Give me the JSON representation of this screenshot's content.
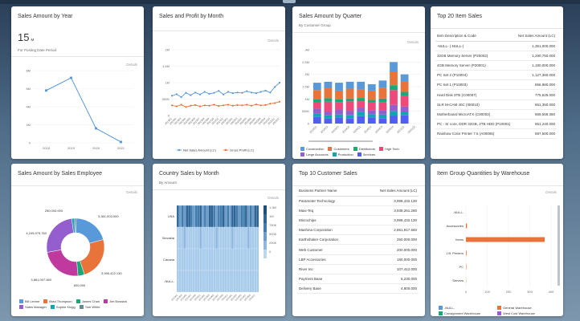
{
  "colors": {
    "accent": "#5899da",
    "orange": "#e8743b",
    "green": "#19a979",
    "pink": "#ed4a7b",
    "purple": "#945ecf",
    "teal": "#13a4b4",
    "darkblue": "#525df4",
    "grey": "#bf399e",
    "barblue": "#427cac"
  },
  "common": {
    "details": "Details"
  },
  "card1": {
    "title": "Sales Amount by Year",
    "kpi_value": "15",
    "kpi_unit": "M",
    "subtitle": "For Posting Date Period",
    "yticks": [
      "8M",
      "6M",
      "4M",
      "2M",
      "0"
    ],
    "chart_data": {
      "type": "line",
      "categories": [
        "2018",
        "2019",
        "2020",
        "2021"
      ],
      "values": [
        5.8,
        7.2,
        1.6,
        0.1
      ],
      "ylim": [
        0,
        8
      ]
    }
  },
  "card2": {
    "title": "Sales and Profit by Month",
    "yticks": [
      "2M",
      "1.5M",
      "1M",
      "500K",
      "0"
    ],
    "xticks": [
      "201901",
      "201902",
      "201903",
      "201904",
      "201905",
      "201906",
      "201907",
      "201908",
      "201909",
      "201910",
      "201911",
      "201912",
      "202001",
      "202002",
      "202003",
      "202004",
      "202005",
      "202006",
      "202007",
      "202008",
      "202009",
      "202010",
      "202011",
      "202012"
    ],
    "chart_data": {
      "type": "line",
      "ylim": [
        0,
        2000000
      ],
      "series": [
        {
          "name": "Net Sales Amount (LC)",
          "values": [
            600000,
            650000,
            560000,
            690000,
            620000,
            700000,
            640000,
            720000,
            660000,
            690000,
            750000,
            640000,
            720000,
            680000,
            700000,
            690000,
            740000,
            700000,
            680000,
            720000,
            760000,
            700000,
            870000,
            1000000
          ]
        },
        {
          "name": "Gross Profit (LC)",
          "values": [
            310000,
            280000,
            330000,
            260000,
            300000,
            320000,
            280000,
            310000,
            300000,
            330000,
            290000,
            310000,
            330000,
            300000,
            320000,
            310000,
            330000,
            300000,
            340000,
            310000,
            320000,
            360000,
            380000,
            420000
          ]
        }
      ]
    }
  },
  "card3": {
    "title": "Sales Amount by Quarter",
    "subtitle": "By Customer Group",
    "yticks": [
      "3M",
      "2.5M",
      "2M",
      "1.5M",
      "1M",
      "500K",
      "0"
    ],
    "chart_data": {
      "type": "bar",
      "categories": [
        "2019Q1",
        "2019Q2",
        "2019Q3",
        "2019Q4",
        "2020Q1",
        "2020Q2",
        "2020Q3",
        "2020Q4",
        "2021Q1",
        "2021Q2"
      ],
      "ylim": [
        0,
        3000000
      ],
      "series": [
        {
          "name": "Construction",
          "values": [
            300000,
            250000,
            320000,
            280000,
            300000,
            260000,
            310000,
            380000,
            290000,
            0
          ]
        },
        {
          "name": "Customers",
          "values": [
            380000,
            420000,
            350000,
            400000,
            360000,
            380000,
            420000,
            560000,
            420000,
            0
          ]
        },
        {
          "name": "Distributors",
          "values": [
            100000,
            140000,
            120000,
            120000,
            130000,
            110000,
            150000,
            200000,
            150000,
            0
          ]
        },
        {
          "name": "High Tech",
          "values": [
            280000,
            400000,
            300000,
            380000,
            260000,
            300000,
            320000,
            600000,
            450000,
            0
          ]
        },
        {
          "name": "Large Accounts",
          "values": [
            180000,
            160000,
            200000,
            170000,
            190000,
            170000,
            180000,
            250000,
            200000,
            0
          ]
        },
        {
          "name": "Production",
          "values": [
            150000,
            130000,
            120000,
            150000,
            160000,
            130000,
            170000,
            200000,
            160000,
            0
          ]
        },
        {
          "name": "Services",
          "values": [
            270000,
            200000,
            250000,
            200000,
            300000,
            250000,
            200000,
            310000,
            330000,
            0
          ]
        }
      ]
    }
  },
  "card4": {
    "title": "Top 20 Item Sales",
    "col1": "Item Description & Code",
    "col2": "Net Sales Amount (LC)",
    "rows": [
      {
        "name": "-NULL- (-NULL-)",
        "value": "1,351,000.000"
      },
      {
        "name": "32GB Memory Server (P20002)",
        "value": "1,290,750.000"
      },
      {
        "name": "4GB Memory Server (P20001)",
        "value": "1,180,000.000"
      },
      {
        "name": "PC Set 2 (P10004)",
        "value": "1,127,360.000"
      },
      {
        "name": "PC Set 1 (P10003)",
        "value": "856,980.000"
      },
      {
        "name": "Hard Disk 3TB (C00007)",
        "value": "775,625.000"
      },
      {
        "name": "SLR M-CAM 40C (I00010)",
        "value": "661,350.000"
      },
      {
        "name": "Motherboard MicroATX (C00002)",
        "value": "659,559.350"
      },
      {
        "name": "PC - Sr core, DDR 32GB, 2TB HDD (P10001)",
        "value": "651,240.000"
      },
      {
        "name": "Rainbow Color Printer 7.5 (A00005)",
        "value": "597,500.000"
      }
    ]
  },
  "card5": {
    "title": "Sales Amount by Sales Employee",
    "labels": [
      "250,000.000",
      "3,361,003.000",
      "4,245,975.760",
      "3,996,422.130",
      "3,861,007.560",
      "600,000"
    ],
    "chart_data": {
      "type": "pie",
      "categories": [
        "Bill Levine",
        "Brad Thompson",
        "James Chan",
        "Jim Boswick",
        "Sales Manager",
        "Sophie Klogg",
        "Tom White"
      ],
      "values": [
        3361003,
        3996422.13,
        600000,
        3861007.56,
        4245975.76,
        250000,
        150000
      ]
    },
    "legend": [
      "Bill Levine",
      "Brad Thompson",
      "James Chan",
      "Jim Boswick",
      "Sales Manager",
      "Sophie Klogg",
      "Tom White"
    ]
  },
  "card6": {
    "title": "Country Sales by Month",
    "subtitle": "By Amount",
    "rows": [
      "USA",
      "Slovakia",
      "Canada",
      "-NULL-"
    ],
    "scale": [
      "1.3M",
      "1M",
      "750K",
      "500K",
      "250K",
      "0"
    ]
  },
  "card7": {
    "title": "Top 10 Customer Sales",
    "col1": "Business Partner Name",
    "col2": "Net Sales Amount (LC)",
    "rows": [
      {
        "name": "Parameter Technology",
        "value": "3,998,432.130"
      },
      {
        "name": "Maxi-Teq",
        "value": "3,938,261.280"
      },
      {
        "name": "Microchips",
        "value": "3,998,432.130"
      },
      {
        "name": "Mashina Corporation",
        "value": "2,861,917.560"
      },
      {
        "name": "Earthshaker Corporation",
        "value": "250,000.000"
      },
      {
        "name": "Web Customer",
        "value": "200,000.000"
      },
      {
        "name": "LBP Accessories",
        "value": "180,000.000"
      },
      {
        "name": "River Inc",
        "value": "107,412.000"
      },
      {
        "name": "Payment Base",
        "value": "5,230.000"
      },
      {
        "name": "Delivery Base",
        "value": "4,800.000"
      }
    ]
  },
  "card8": {
    "title": "Item Group Quantities by Warehouse",
    "xticks": [
      "0",
      "100",
      "200",
      "300",
      "400"
    ],
    "chart_data": {
      "type": "bar",
      "categories": [
        "-NULL-",
        "Accessories",
        "Items",
        "J.B. Printers",
        "PC",
        "Servers"
      ],
      "xlim": [
        0,
        400
      ],
      "series": [
        {
          "name": "-NULL-",
          "values": [
            0,
            0,
            0,
            0,
            0,
            0
          ]
        },
        {
          "name": "Consignment Warehouse",
          "values": [
            0,
            0,
            0,
            0,
            0,
            0
          ]
        },
        {
          "name": "General Warehouse",
          "values": [
            0,
            5,
            370,
            3,
            2,
            1
          ]
        },
        {
          "name": "West Cost Warehouse",
          "values": [
            0,
            0,
            0,
            0,
            0,
            0
          ]
        }
      ]
    },
    "legend": [
      "-NULL-",
      "General Warehouse",
      "Consignment Warehouse",
      "West Cost Warehouse"
    ]
  }
}
